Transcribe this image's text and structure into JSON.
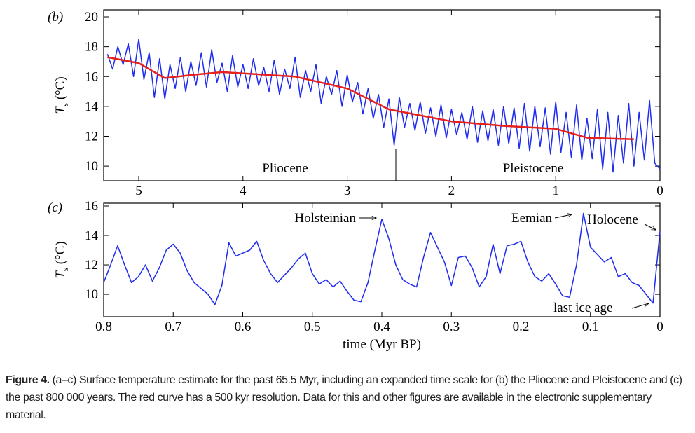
{
  "chart_data": [
    {
      "type": "line",
      "panel_label": "(b)",
      "ylabel": {
        "main": "T",
        "sub": "s",
        "unit": " (°C)"
      },
      "annotations": [
        "Pliocene",
        "Pleistocene"
      ],
      "xlim": [
        5.336,
        0
      ],
      "xticks": [
        5,
        4,
        3,
        2,
        1,
        0
      ],
      "ylim": [
        9.02,
        20.47
      ],
      "yticks": [
        10,
        12,
        14,
        16,
        18,
        20
      ],
      "series": [
        {
          "color": "#1f2cf0",
          "x": [
            5.3,
            5.25,
            5.2,
            5.15,
            5.1,
            5.05,
            5.0,
            4.95,
            4.9,
            4.85,
            4.8,
            4.75,
            4.7,
            4.65,
            4.6,
            4.55,
            4.5,
            4.45,
            4.4,
            4.35,
            4.3,
            4.25,
            4.2,
            4.15,
            4.1,
            4.05,
            4.0,
            3.95,
            3.9,
            3.85,
            3.8,
            3.75,
            3.7,
            3.65,
            3.6,
            3.55,
            3.5,
            3.45,
            3.4,
            3.35,
            3.3,
            3.25,
            3.2,
            3.15,
            3.1,
            3.05,
            3.0,
            2.95,
            2.9,
            2.85,
            2.8,
            2.75,
            2.7,
            2.65,
            2.6,
            2.55,
            2.5,
            2.45,
            2.4,
            2.35,
            2.3,
            2.25,
            2.2,
            2.15,
            2.1,
            2.05,
            2.0,
            1.95,
            1.9,
            1.85,
            1.8,
            1.75,
            1.7,
            1.65,
            1.6,
            1.55,
            1.5,
            1.45,
            1.4,
            1.35,
            1.3,
            1.25,
            1.2,
            1.15,
            1.1,
            1.05,
            1.0,
            0.95,
            0.9,
            0.85,
            0.8,
            0.75,
            0.7,
            0.65,
            0.6,
            0.55,
            0.5,
            0.45,
            0.4,
            0.35,
            0.3,
            0.25,
            0.2,
            0.15,
            0.1,
            0.05,
            0.0
          ],
          "values": [
            17.5,
            16.5,
            18.0,
            16.8,
            18.2,
            16.0,
            18.5,
            15.8,
            17.6,
            14.6,
            17.2,
            14.5,
            16.8,
            15.2,
            17.3,
            15.0,
            17.0,
            15.4,
            17.6,
            15.3,
            17.8,
            15.6,
            16.9,
            15.0,
            17.4,
            15.3,
            16.8,
            15.2,
            17.2,
            15.4,
            16.6,
            15.0,
            17.1,
            14.8,
            16.5,
            15.2,
            17.3,
            14.6,
            16.4,
            15.0,
            16.8,
            14.2,
            16.0,
            14.8,
            16.4,
            14.0,
            16.1,
            14.3,
            15.6,
            13.5,
            15.2,
            13.2,
            14.8,
            12.6,
            14.5,
            11.4,
            14.6,
            12.6,
            14.2,
            12.4,
            14.3,
            12.2,
            13.9,
            12.0,
            14.1,
            11.9,
            13.8,
            12.1,
            13.6,
            11.8,
            14.0,
            11.6,
            13.7,
            11.7,
            13.8,
            11.4,
            14.0,
            11.5,
            13.9,
            11.2,
            14.2,
            11.0,
            14.0,
            11.3,
            13.9,
            10.8,
            14.3,
            10.9,
            13.6,
            10.6,
            14.1,
            10.4,
            13.2,
            10.5,
            13.8,
            9.8,
            13.6,
            9.6,
            13.4,
            10.2,
            14.2,
            10.0,
            13.6,
            10.4,
            14.4,
            10.2,
            9.8
          ]
        },
        {
          "color": "#e8201a",
          "x": [
            5.3,
            5.0,
            4.75,
            4.5,
            4.2,
            3.5,
            3.0,
            2.6,
            2.0,
            1.5,
            1.0,
            0.7,
            0.25
          ],
          "values": [
            17.3,
            16.9,
            15.9,
            16.1,
            16.3,
            16.0,
            15.2,
            13.8,
            13.0,
            12.7,
            12.5,
            11.9,
            11.8
          ]
        }
      ]
    },
    {
      "type": "line",
      "panel_label": "(c)",
      "ylabel": {
        "main": "T",
        "sub": "s",
        "unit": " (°C)"
      },
      "xlabel": "time (Myr BP)",
      "annotations": [
        "Holsteinian",
        "Eemian",
        "Holocene",
        "last ice age"
      ],
      "xlim": [
        0.8,
        0
      ],
      "xticks": [
        0.8,
        0.7,
        0.6,
        0.5,
        0.4,
        0.3,
        0.2,
        0.1,
        0
      ],
      "ylim": [
        8.48,
        16.19
      ],
      "yticks": [
        10,
        12,
        14,
        16
      ],
      "series": [
        {
          "color": "#1f2cf0",
          "x": [
            0.8,
            0.79,
            0.78,
            0.77,
            0.76,
            0.75,
            0.74,
            0.73,
            0.72,
            0.71,
            0.7,
            0.69,
            0.68,
            0.67,
            0.66,
            0.65,
            0.64,
            0.63,
            0.62,
            0.61,
            0.6,
            0.59,
            0.58,
            0.57,
            0.56,
            0.55,
            0.54,
            0.53,
            0.52,
            0.51,
            0.5,
            0.49,
            0.48,
            0.47,
            0.46,
            0.45,
            0.44,
            0.43,
            0.42,
            0.41,
            0.4,
            0.39,
            0.38,
            0.37,
            0.36,
            0.35,
            0.34,
            0.33,
            0.32,
            0.31,
            0.3,
            0.29,
            0.28,
            0.27,
            0.26,
            0.25,
            0.24,
            0.23,
            0.22,
            0.21,
            0.2,
            0.19,
            0.18,
            0.17,
            0.16,
            0.15,
            0.14,
            0.13,
            0.12,
            0.11,
            0.1,
            0.09,
            0.08,
            0.07,
            0.06,
            0.05,
            0.04,
            0.03,
            0.02,
            0.01,
            0.0
          ],
          "values": [
            10.8,
            12.0,
            13.3,
            12.0,
            10.8,
            11.2,
            12.0,
            10.9,
            11.8,
            13.0,
            13.4,
            12.8,
            11.6,
            10.8,
            10.4,
            10.0,
            9.3,
            10.6,
            13.5,
            12.6,
            12.8,
            13.0,
            13.6,
            12.3,
            11.4,
            10.8,
            11.3,
            11.8,
            12.4,
            12.8,
            11.4,
            10.7,
            11.0,
            10.5,
            10.9,
            10.2,
            9.6,
            9.5,
            10.8,
            13.0,
            15.1,
            13.8,
            12.0,
            11.0,
            10.7,
            10.5,
            12.5,
            14.2,
            13.2,
            12.2,
            10.6,
            12.5,
            12.6,
            11.8,
            10.5,
            11.2,
            13.4,
            11.4,
            13.3,
            13.4,
            13.6,
            12.2,
            11.2,
            10.9,
            11.4,
            10.7,
            9.9,
            9.8,
            12.0,
            15.5,
            13.2,
            12.7,
            12.2,
            12.5,
            11.2,
            11.4,
            10.8,
            10.6,
            10.0,
            9.4,
            14.3
          ]
        }
      ]
    }
  ],
  "caption": {
    "label": "Figure 4.",
    "text": "(a–c) Surface temperature estimate for the past 65.5 Myr, including an expanded time scale for (b) the Pliocene and Pleistocene and (c) the past 800 000 years. The red curve has a 500 kyr resolution. Data for this and other figures are available in the electronic supplementary material."
  }
}
